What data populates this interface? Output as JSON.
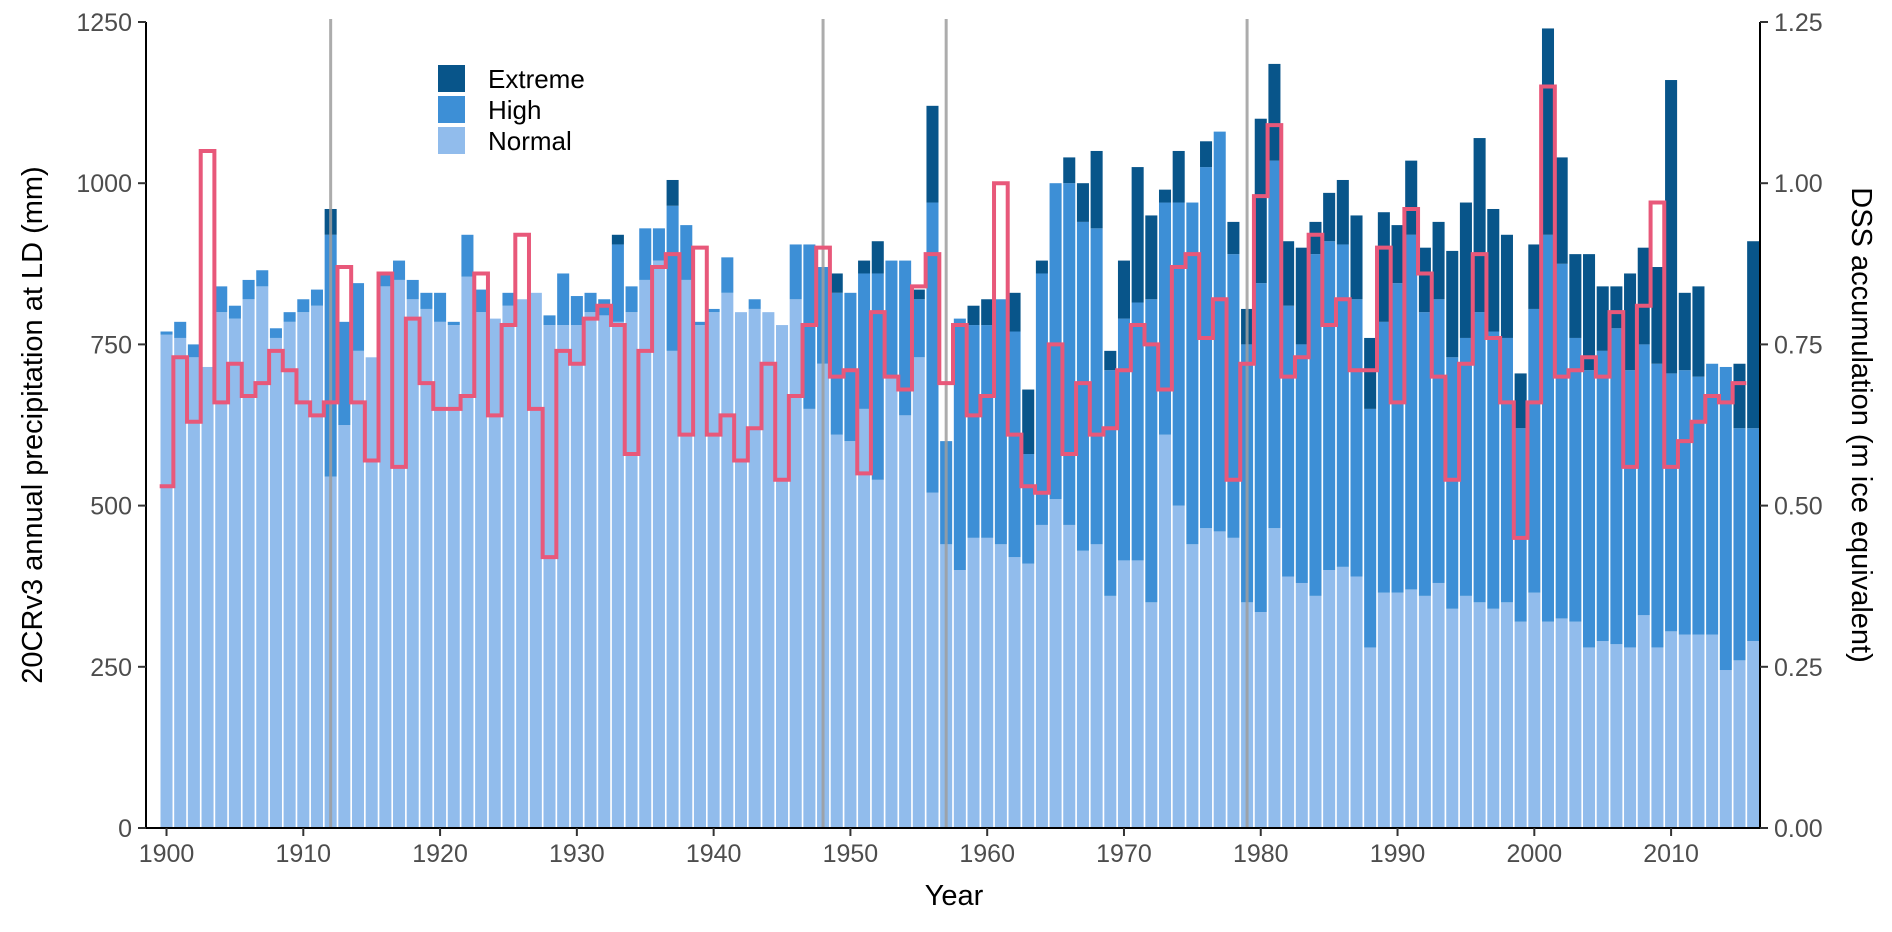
{
  "chart_data": {
    "type": "bar",
    "subtype": "stacked bar with step-line overlay on secondary axis",
    "title": "",
    "xlabel": "Year",
    "ylabel": "20CRv3 annual precipitation at LD (mm)",
    "ylabel_right": "DSS accumulation (m ice equivalent)",
    "xlim": [
      1898.5,
      2016.5
    ],
    "ylim": [
      0,
      1250
    ],
    "ylim_right": [
      0,
      1.25
    ],
    "x_ticks": [
      1900,
      1910,
      1920,
      1930,
      1940,
      1950,
      1960,
      1970,
      1980,
      1990,
      2000,
      2010
    ],
    "y_ticks": [
      0,
      250,
      500,
      750,
      1000,
      1250
    ],
    "y_ticks_right": [
      "0.00",
      "0.25",
      "0.50",
      "0.75",
      "1.00",
      "1.25"
    ],
    "grid": false,
    "legend_position": "top-left",
    "vertical_lines": [
      1912,
      1948,
      1957,
      1979
    ],
    "colors": {
      "Extreme": "#08558a",
      "High": "#3d8fd6",
      "Normal": "#91bcec",
      "dss_line": "#e8587a",
      "vline": "#9e9e9e",
      "axis": "#000000"
    },
    "series": [
      {
        "name": "Normal",
        "values": [
          765,
          760,
          730,
          715,
          800,
          790,
          820,
          840,
          760,
          785,
          800,
          810,
          545,
          625,
          740,
          730,
          840,
          850,
          820,
          805,
          785,
          780,
          855,
          800,
          790,
          810,
          820,
          830,
          780,
          780,
          780,
          800,
          795,
          785,
          800,
          850,
          880,
          740,
          850,
          780,
          800,
          830,
          800,
          805,
          800,
          780,
          820,
          650,
          720,
          610,
          600,
          650,
          540,
          700,
          640,
          730,
          520,
          440,
          400,
          450,
          450,
          440,
          420,
          410,
          470,
          510,
          470,
          430,
          440,
          360,
          415,
          415,
          350,
          610,
          500,
          440,
          465,
          460,
          450,
          350,
          335,
          465,
          390,
          380,
          360,
          400,
          405,
          390,
          280,
          365,
          365,
          370,
          360,
          380,
          340,
          360,
          350,
          340,
          350,
          320,
          365,
          320,
          325,
          320,
          280,
          290,
          285,
          280,
          330,
          280,
          305,
          300,
          300,
          300,
          245,
          260,
          290
        ],
        "display_values": [
          "765",
          "760",
          "730",
          "715",
          "800",
          "790",
          "820",
          "840",
          "760",
          "785",
          "800",
          "810",
          "545",
          "625",
          "740",
          "730",
          "840",
          "850",
          "820",
          "805",
          "785",
          "780",
          "855",
          "800",
          "790",
          "810",
          "820",
          "830",
          "780",
          "780",
          "780",
          "800",
          "795",
          "785",
          "800",
          "850",
          "880",
          "740",
          "850",
          "780",
          "800",
          "830",
          "800",
          "805",
          "800",
          "780",
          "820",
          "650",
          "720",
          "610",
          "600",
          "650",
          "540",
          "700",
          "640",
          "730",
          "520",
          "440",
          "400",
          "450",
          "450",
          "440",
          "420",
          "410",
          "470",
          "510",
          "470",
          "430",
          "440",
          "360",
          "415",
          "415",
          "350",
          "610",
          "500",
          "440",
          "465",
          "460",
          "450",
          "350",
          "335",
          "465",
          "390",
          "380",
          "360",
          "400",
          "405",
          "390",
          "280",
          "365",
          "365",
          "370",
          "360",
          "380",
          "340",
          "360",
          "350",
          "340",
          "350",
          "320",
          "365",
          "320",
          "325",
          "320",
          "280",
          "290",
          "285",
          "280",
          "330",
          "280",
          "305",
          "300",
          "300",
          "300",
          "245",
          "260",
          "290"
        ]
      },
      {
        "name": "High",
        "values": [
          5,
          25,
          20,
          0,
          40,
          20,
          30,
          25,
          15,
          15,
          20,
          25,
          375,
          160,
          105,
          0,
          20,
          30,
          30,
          25,
          45,
          5,
          65,
          35,
          0,
          20,
          0,
          0,
          15,
          80,
          45,
          30,
          25,
          120,
          40,
          80,
          50,
          225,
          85,
          5,
          5,
          55,
          0,
          15,
          0,
          0,
          85,
          255,
          150,
          220,
          230,
          210,
          320,
          180,
          240,
          90,
          450,
          160,
          390,
          330,
          330,
          380,
          350,
          170,
          390,
          490,
          530,
          510,
          490,
          350,
          375,
          400,
          470,
          360,
          470,
          530,
          560,
          620,
          440,
          400,
          510,
          570,
          420,
          370,
          530,
          510,
          500,
          430,
          370,
          420,
          480,
          550,
          440,
          440,
          390,
          400,
          450,
          430,
          410,
          300,
          440,
          600,
          550,
          440,
          430,
          450,
          490,
          430,
          420,
          440,
          400,
          410,
          400,
          420,
          470,
          360,
          330
        ],
        "display_values": [
          "5",
          "25",
          "20",
          "0",
          "40",
          "20",
          "30",
          "25",
          "15",
          "15",
          "20",
          "25",
          "375",
          "160",
          "105",
          "0",
          "20",
          "30",
          "30",
          "25",
          "45",
          "5",
          "65",
          "35",
          "0",
          "20",
          "0",
          "0",
          "15",
          "80",
          "45",
          "30",
          "25",
          "120",
          "40",
          "80",
          "50",
          "225",
          "85",
          "5",
          "5",
          "55",
          "0",
          "15",
          "0",
          "0",
          "85",
          "255",
          "150",
          "220",
          "230",
          "210",
          "320",
          "180",
          "240",
          "90",
          "450",
          "160",
          "390",
          "330",
          "330",
          "380",
          "350",
          "170",
          "390",
          "490",
          "530",
          "510",
          "490",
          "350",
          "375",
          "400",
          "470",
          "360",
          "470",
          "530",
          "560",
          "620",
          "440",
          "400",
          "510",
          "570",
          "420",
          "370",
          "530",
          "510",
          "500",
          "430",
          "370",
          "420",
          "480",
          "550",
          "440",
          "440",
          "390",
          "400",
          "450",
          "430",
          "410",
          "300",
          "440",
          "600",
          "550",
          "440",
          "430",
          "450",
          "490",
          "430",
          "420",
          "440",
          "400",
          "410",
          "400",
          "420",
          "470",
          "360",
          "330"
        ]
      },
      {
        "name": "Extreme",
        "values": [
          0,
          0,
          0,
          0,
          0,
          0,
          0,
          0,
          0,
          0,
          0,
          0,
          40,
          0,
          0,
          0,
          0,
          0,
          0,
          0,
          0,
          0,
          0,
          0,
          0,
          0,
          0,
          0,
          0,
          0,
          0,
          0,
          0,
          15,
          0,
          0,
          0,
          40,
          0,
          0,
          0,
          0,
          0,
          0,
          0,
          0,
          0,
          0,
          0,
          30,
          0,
          20,
          50,
          0,
          0,
          15,
          150,
          0,
          0,
          30,
          40,
          0,
          60,
          100,
          20,
          0,
          40,
          60,
          120,
          30,
          90,
          210,
          130,
          20,
          80,
          0,
          40,
          0,
          50,
          55,
          255,
          150,
          100,
          150,
          50,
          75,
          100,
          130,
          110,
          170,
          90,
          115,
          100,
          120,
          165,
          210,
          270,
          190,
          160,
          85,
          100,
          320,
          165,
          130,
          180,
          100,
          65,
          150,
          150,
          150,
          455,
          120,
          140,
          0,
          0,
          100,
          290
        ],
        "display_values": [
          "0",
          "0",
          "0",
          "0",
          "0",
          "0",
          "0",
          "0",
          "0",
          "0",
          "0",
          "0",
          "40",
          "0",
          "0",
          "0",
          "0",
          "0",
          "0",
          "0",
          "0",
          "0",
          "0",
          "0",
          "0",
          "0",
          "0",
          "0",
          "0",
          "0",
          "0",
          "0",
          "0",
          "15",
          "0",
          "0",
          "0",
          "40",
          "0",
          "0",
          "0",
          "0",
          "0",
          "0",
          "0",
          "0",
          "0",
          "0",
          "0",
          "30",
          "0",
          "20",
          "50",
          "0",
          "0",
          "15",
          "150",
          "0",
          "0",
          "30",
          "40",
          "0",
          "60",
          "100",
          "20",
          "0",
          "40",
          "60",
          "120",
          "30",
          "90",
          "210",
          "130",
          "20",
          "80",
          "0",
          "40",
          "0",
          "50",
          "55",
          "255",
          "150",
          "100",
          "150",
          "50",
          "75",
          "100",
          "130",
          "110",
          "170",
          "90",
          "115",
          "100",
          "120",
          "165",
          "210",
          "270",
          "190",
          "160",
          "85",
          "100",
          "320",
          "165",
          "130",
          "180",
          "100",
          "65",
          "150",
          "150",
          "150",
          "455",
          "120",
          "140",
          "0",
          "0",
          "100",
          "290"
        ]
      }
    ],
    "x_start": 1900,
    "dss": {
      "name": "DSS accumulation",
      "values": [
        0.53,
        0.73,
        0.63,
        1.05,
        0.66,
        0.72,
        0.67,
        0.69,
        0.74,
        0.71,
        0.66,
        0.64,
        0.66,
        0.87,
        0.66,
        0.57,
        0.86,
        0.56,
        0.79,
        0.69,
        0.65,
        0.65,
        0.67,
        0.86,
        0.64,
        0.78,
        0.92,
        0.65,
        0.42,
        0.74,
        0.72,
        0.79,
        0.81,
        0.78,
        0.58,
        0.74,
        0.87,
        0.89,
        0.61,
        0.9,
        0.61,
        0.64,
        0.57,
        0.62,
        0.72,
        0.54,
        0.67,
        0.78,
        0.9,
        0.7,
        0.71,
        0.55,
        0.8,
        0.7,
        0.68,
        0.84,
        0.89,
        0.69,
        0.78,
        0.64,
        0.67,
        1.0,
        0.61,
        0.53,
        0.52,
        0.75,
        0.58,
        0.69,
        0.61,
        0.62,
        0.71,
        0.78,
        0.75,
        0.68,
        0.87,
        0.89,
        0.76,
        0.82,
        0.54,
        0.72,
        0.98,
        1.09,
        0.7,
        0.73,
        0.92,
        0.78,
        0.82,
        0.71,
        0.71,
        0.9,
        0.66,
        0.96,
        0.86,
        0.7,
        0.54,
        0.72,
        0.89,
        0.76,
        0.66,
        0.45,
        0.66,
        1.15,
        0.7,
        0.71,
        0.73,
        0.7,
        0.8,
        0.56,
        0.81,
        0.97,
        0.56,
        0.6,
        0.63,
        0.67,
        0.66,
        0.69
      ],
      "display_values": [
        "0.53",
        "0.73",
        "0.63",
        "1.05",
        "0.66",
        "0.72",
        "0.67",
        "0.69",
        "0.74",
        "0.71",
        "0.66",
        "0.64",
        "0.66",
        "0.87",
        "0.66",
        "0.57",
        "0.86",
        "0.56",
        "0.79",
        "0.69",
        "0.65",
        "0.65",
        "0.67",
        "0.86",
        "0.64",
        "0.78",
        "0.92",
        "0.65",
        "0.42",
        "0.74",
        "0.72",
        "0.79",
        "0.81",
        "0.78",
        "0.58",
        "0.74",
        "0.87",
        "0.89",
        "0.61",
        "0.9",
        "0.61",
        "0.64",
        "0.57",
        "0.62",
        "0.72",
        "0.54",
        "0.67",
        "0.78",
        "0.9",
        "0.7",
        "0.71",
        "0.55",
        "0.8",
        "0.7",
        "0.68",
        "0.84",
        "0.89",
        "0.69",
        "0.78",
        "0.64",
        "0.67",
        "1.0",
        "0.61",
        "0.53",
        "0.52",
        "0.75",
        "0.58",
        "0.69",
        "0.61",
        "0.62",
        "0.71",
        "0.78",
        "0.75",
        "0.68",
        "0.87",
        "0.89",
        "0.76",
        "0.82",
        "0.54",
        "0.72",
        "0.98",
        "1.09",
        "0.7",
        "0.73",
        "0.92",
        "0.78",
        "0.82",
        "0.71",
        "0.71",
        "0.9",
        "0.66",
        "0.96",
        "0.86",
        "0.7",
        "0.54",
        "0.72",
        "0.89",
        "0.76",
        "0.66",
        "0.45",
        "0.66",
        "1.15",
        "0.7",
        "0.71",
        "0.73",
        "0.7",
        "0.8",
        "0.56",
        "0.81",
        "0.97",
        "0.56",
        "0.6",
        "0.63",
        "0.67",
        "0.66",
        "0.69"
      ]
    },
    "legend": [
      {
        "label": "Extreme",
        "series": "Extreme"
      },
      {
        "label": "High",
        "series": "High"
      },
      {
        "label": "Normal",
        "series": "Normal"
      }
    ]
  }
}
